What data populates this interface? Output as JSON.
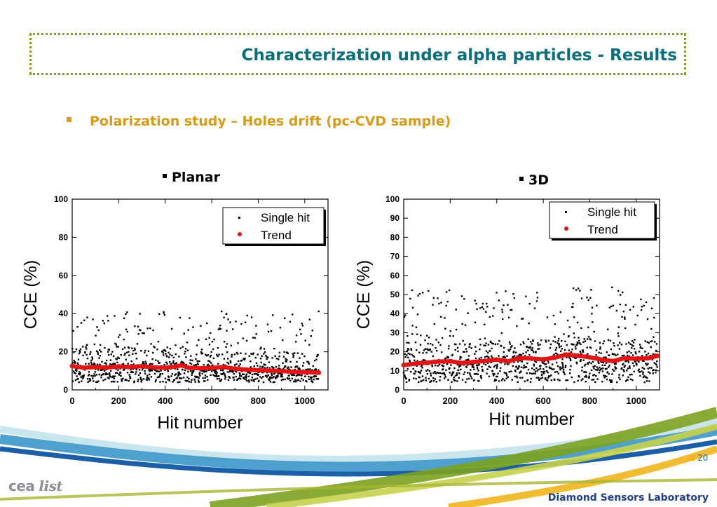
{
  "slide": {
    "title": "Characterization under alpha particles - Results",
    "bullet": "Polarization study – Holes drift (pc-CVD sample)",
    "page_number": "20",
    "footer_org": "Diamond Sensors Laboratory",
    "logo_left": "cea",
    "logo_right": "list"
  },
  "colors": {
    "title": "#0a6e7d",
    "bullet": "#d99b14",
    "trend": "#e31414",
    "points": "#000000",
    "frame": "#8a9a1e"
  },
  "chart_data": [
    {
      "type": "scatter",
      "title": "Planar",
      "xlabel": "Hit number",
      "ylabel": "CCE (%)",
      "xlim": [
        0,
        1100
      ],
      "ylim": [
        0,
        100
      ],
      "x_ticks": [
        0,
        200,
        400,
        600,
        800,
        1000
      ],
      "y_ticks": [
        0,
        20,
        40,
        60,
        80,
        100
      ],
      "legend": {
        "position": "top-right",
        "entries": [
          "Single hit",
          "Trend"
        ]
      },
      "series": [
        {
          "name": "Single hit",
          "marker": "square",
          "n_points": 1060,
          "x_range": [
            0,
            1060
          ],
          "baseline_approx": 8,
          "spread_min": 4,
          "spread_max": 42
        },
        {
          "name": "Trend",
          "marker": "circle",
          "x": [
            0,
            50,
            100,
            150,
            200,
            250,
            300,
            350,
            400,
            450,
            470,
            500,
            550,
            600,
            650,
            700,
            750,
            800,
            850,
            900,
            950,
            1000,
            1060
          ],
          "values": [
            12.5,
            11.6,
            12.0,
            11.7,
            12.3,
            12.0,
            12.4,
            11.8,
            11.6,
            12.4,
            12.9,
            11.6,
            11.3,
            11.6,
            12.0,
            11.1,
            10.6,
            10.3,
            10.1,
            9.9,
            9.5,
            9.3,
            9.0
          ]
        }
      ]
    },
    {
      "type": "scatter",
      "title": "3D",
      "xlabel": "Hit number",
      "ylabel": "CCE (%)",
      "xlim": [
        0,
        1100
      ],
      "ylim": [
        0,
        100
      ],
      "x_ticks": [
        0,
        200,
        400,
        600,
        800,
        1000
      ],
      "y_ticks": [
        0,
        10,
        20,
        30,
        40,
        50,
        60,
        70,
        80,
        90,
        100
      ],
      "legend": {
        "position": "top-right",
        "entries": [
          "Single hit",
          "Trend"
        ]
      },
      "series": [
        {
          "name": "Single hit",
          "marker": "square",
          "n_points": 1090,
          "x_range": [
            0,
            1090
          ],
          "baseline_approx": 15,
          "spread_min": 4,
          "spread_max": 54
        },
        {
          "name": "Trend",
          "marker": "circle",
          "x": [
            0,
            50,
            100,
            150,
            200,
            250,
            300,
            350,
            400,
            450,
            500,
            550,
            600,
            650,
            700,
            750,
            800,
            850,
            900,
            950,
            1000,
            1050,
            1090
          ],
          "values": [
            13.0,
            13.8,
            14.3,
            14.9,
            15.0,
            14.1,
            14.6,
            15.2,
            15.9,
            14.9,
            16.8,
            16.4,
            16.0,
            16.9,
            18.5,
            17.9,
            17.1,
            15.9,
            15.1,
            16.6,
            16.3,
            16.6,
            17.8
          ]
        }
      ]
    }
  ]
}
